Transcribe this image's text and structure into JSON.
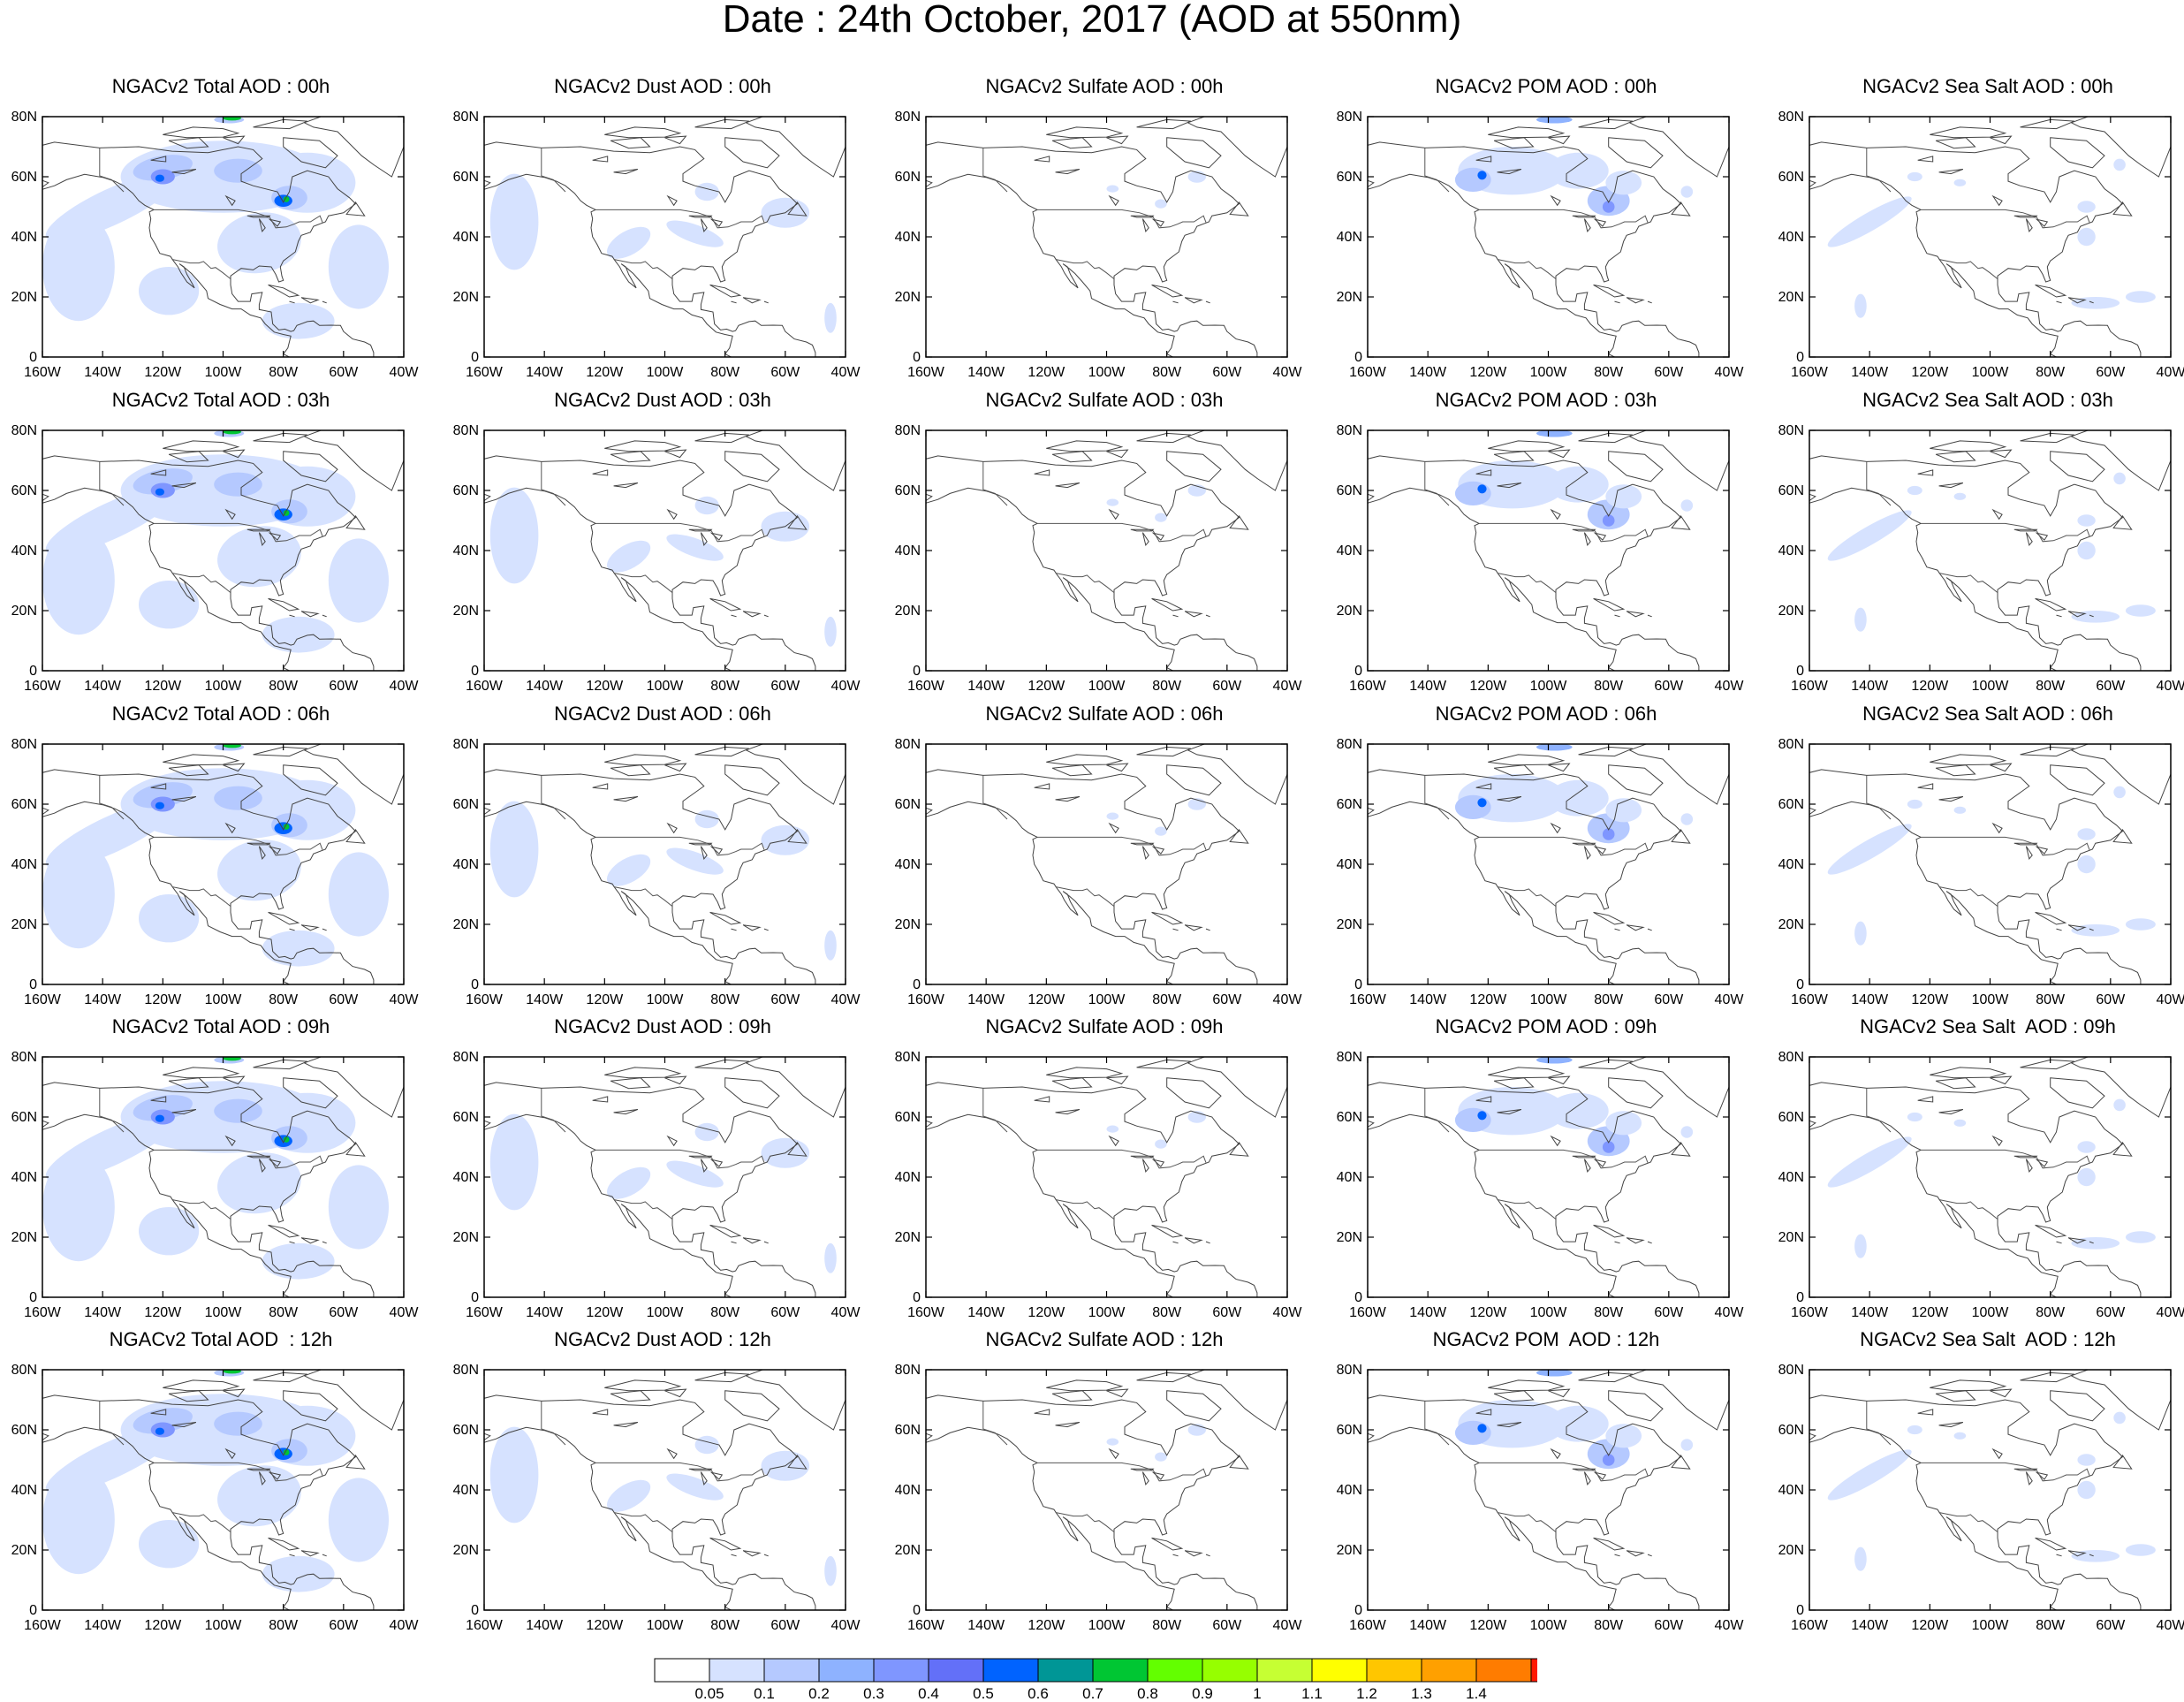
{
  "title": "Date : 24th October, 2017 (AOD at 550nm)",
  "grid_titles": [
    [
      "NGACv2 Total AOD : 00h",
      "NGACv2 Dust AOD : 00h",
      "NGACv2 Sulfate AOD : 00h",
      "NGACv2 POM AOD : 00h",
      "NGACv2 Sea Salt AOD : 00h"
    ],
    [
      "NGACv2 Total AOD : 03h",
      "NGACv2 Dust AOD : 03h",
      "NGACv2 Sulfate AOD : 03h",
      "NGACv2 POM AOD : 03h",
      "NGACv2 Sea Salt AOD : 03h"
    ],
    [
      "NGACv2 Total AOD : 06h",
      "NGACv2 Dust AOD : 06h",
      "NGACv2 Sulfate AOD : 06h",
      "NGACv2 POM AOD : 06h",
      "NGACv2 Sea Salt AOD : 06h"
    ],
    [
      "NGACv2 Total AOD : 09h",
      "NGACv2 Dust AOD : 09h",
      "NGACv2 Sulfate AOD : 09h",
      "NGACv2 POM AOD : 09h",
      "NGACv2 Sea Salt  AOD : 09h"
    ],
    [
      "NGACv2 Total AOD  : 12h",
      "NGACv2 Dust AOD : 12h",
      "NGACv2 Sulfate AOD : 12h",
      "NGACv2 POM  AOD : 12h",
      "NGACv2 Sea Salt  AOD : 12h"
    ]
  ],
  "x_ticks": [
    "160W",
    "140W",
    "120W",
    "100W",
    "80W",
    "60W",
    "40W"
  ],
  "y_ticks": [
    "0",
    "20N",
    "40N",
    "60N",
    "80N"
  ],
  "colorbar": {
    "labels": [
      "0.05",
      "0.1",
      "0.2",
      "0.3",
      "0.4",
      "0.5",
      "0.6",
      "0.7",
      "0.8",
      "0.9",
      "1",
      "1.1",
      "1.2",
      "1.3",
      "1.4"
    ],
    "colors": [
      "#ffffff",
      "#d6e2ff",
      "#b5c9ff",
      "#8eb2ff",
      "#7f96ff",
      "#6370f8",
      "#0063ff",
      "#009696",
      "#00c633",
      "#63ff00",
      "#96ff00",
      "#c6ff33",
      "#ffff00",
      "#ffc600",
      "#ffa000",
      "#ff7c00",
      "#ff1900"
    ]
  }
}
